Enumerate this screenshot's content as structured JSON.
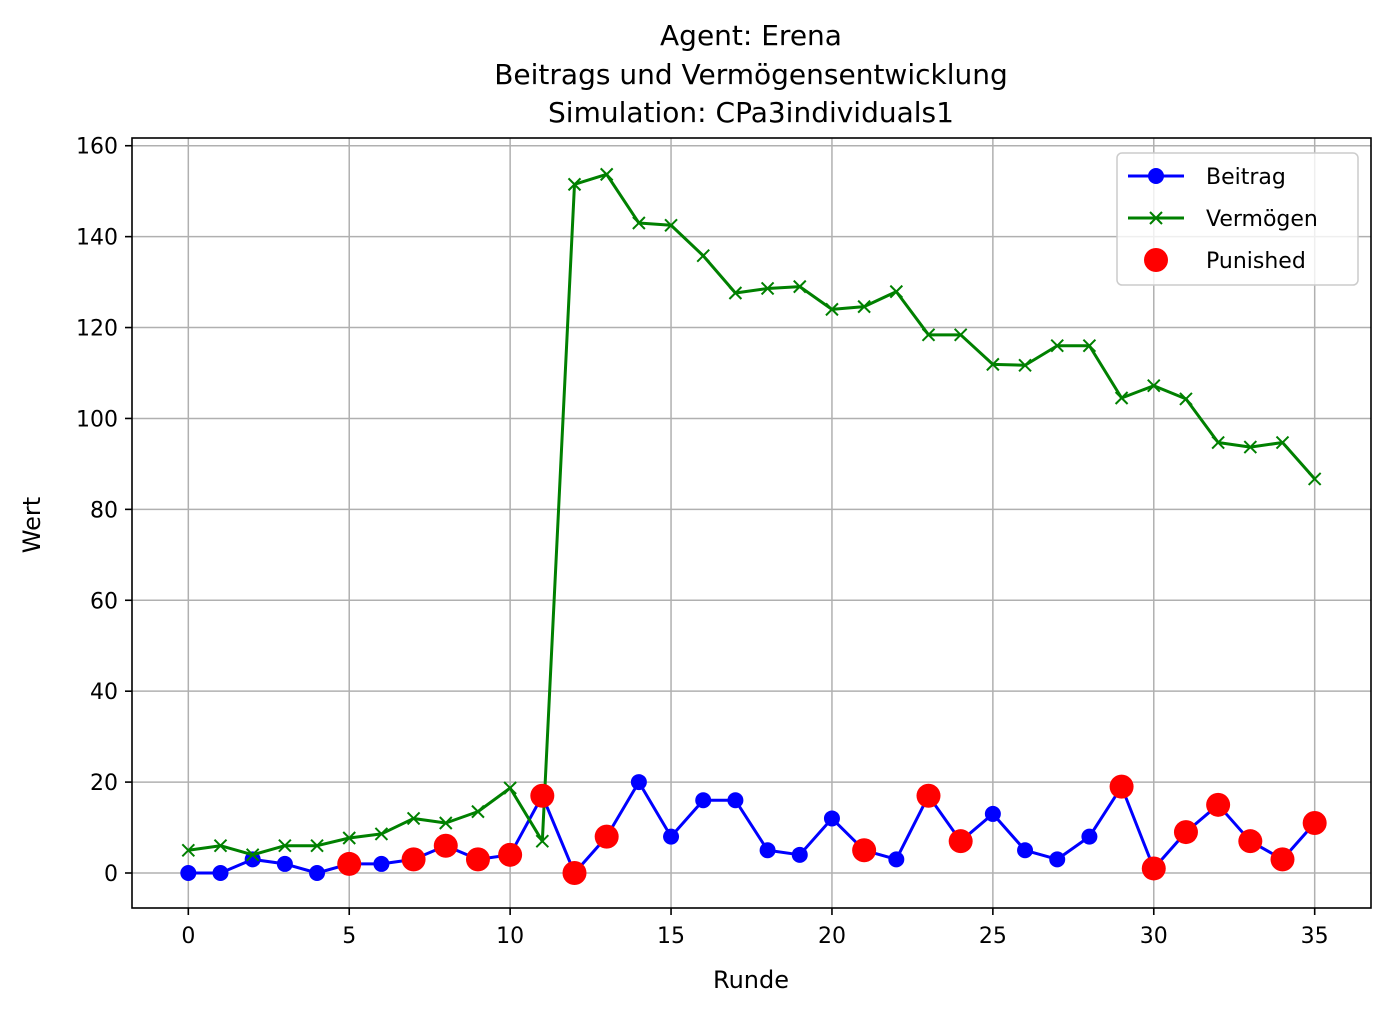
{
  "chart_data": {
    "type": "line",
    "title_lines": [
      "Agent: Erena",
      "Beitrags und Vermögensentwicklung",
      "Simulation: CPa3individuals1"
    ],
    "xlabel": "Runde",
    "ylabel": "Wert",
    "xlim": [
      -1.75,
      36.75
    ],
    "ylim": [
      -7.7,
      161.7
    ],
    "x_ticks": [
      0,
      5,
      10,
      15,
      20,
      25,
      30,
      35
    ],
    "y_ticks": [
      0,
      20,
      40,
      60,
      80,
      100,
      120,
      140,
      160
    ],
    "grid": true,
    "legend_position": "top-right",
    "x": [
      0,
      1,
      2,
      3,
      4,
      5,
      6,
      7,
      8,
      9,
      10,
      11,
      12,
      13,
      14,
      15,
      16,
      17,
      18,
      19,
      20,
      21,
      22,
      23,
      24,
      25,
      26,
      27,
      28,
      29,
      30,
      31,
      32,
      33,
      34,
      35
    ],
    "series": [
      {
        "name": "Beitrag",
        "color": "#0000ff",
        "marker": "circle",
        "values": [
          0,
          0,
          3,
          2,
          0,
          2,
          2,
          3,
          6,
          3,
          4,
          17,
          0,
          8,
          20,
          8,
          16,
          16,
          5,
          4,
          12,
          5,
          3,
          17,
          7,
          13,
          5,
          3,
          8,
          19,
          1,
          9,
          15,
          7,
          3,
          11
        ]
      },
      {
        "name": "Vermögen",
        "color": "#008000",
        "marker": "x",
        "values": [
          5,
          6,
          4,
          6,
          6,
          7.7,
          8.6,
          12,
          11,
          13.5,
          18.7,
          7,
          151.5,
          153.7,
          143,
          142.5,
          135.8,
          127.6,
          128.6,
          129,
          124,
          124.6,
          127.9,
          118.4,
          118.4,
          111.9,
          111.7,
          116,
          116,
          104.5,
          107.2,
          104.3,
          94.7,
          93.7,
          94.7,
          86.7
        ]
      }
    ],
    "punished": {
      "name": "Punished",
      "color": "#ff0000",
      "x": [
        5,
        7,
        8,
        9,
        10,
        11,
        12,
        13,
        21,
        23,
        24,
        29,
        30,
        31,
        32,
        33,
        34,
        35
      ],
      "values": [
        2,
        3,
        6,
        3,
        4,
        17,
        0,
        8,
        5,
        17,
        7,
        19,
        1,
        9,
        15,
        7,
        3,
        11
      ]
    }
  }
}
